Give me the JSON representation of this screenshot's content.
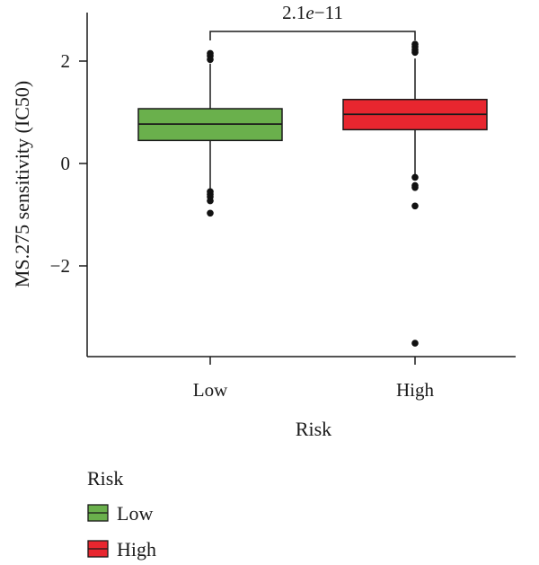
{
  "chart_data": {
    "type": "boxplot",
    "xlabel": "Risk",
    "ylabel": "MS.275 sensitivity (IC50)",
    "ylim": [
      -3.75,
      2.95
    ],
    "y_ticks": [
      2,
      0,
      -2
    ],
    "y_tick_labels": [
      "2",
      "0",
      "−2"
    ],
    "categories": [
      "Low",
      "High"
    ],
    "significance": {
      "label_prefix": "2.1",
      "label_e": "e",
      "label_suffix": "−11",
      "groups": [
        "Low",
        "High"
      ]
    },
    "series": [
      {
        "name": "Low",
        "color": "#6ab04c",
        "q1": 0.45,
        "median": 0.77,
        "q3": 1.07,
        "whisker_low": -0.5,
        "whisker_high": 1.95,
        "outliers": [
          2.15,
          2.1,
          2.03,
          -0.55,
          -0.6,
          -0.65,
          -0.73,
          -0.97
        ]
      },
      {
        "name": "High",
        "color": "#e8262f",
        "q1": 0.66,
        "median": 0.96,
        "q3": 1.25,
        "whisker_low": -0.22,
        "whisker_high": 2.05,
        "outliers": [
          2.33,
          2.28,
          2.22,
          2.17,
          -0.27,
          -0.43,
          -0.47,
          -0.83,
          -3.51
        ]
      }
    ],
    "legend": {
      "title": "Risk",
      "items": [
        {
          "label": "Low",
          "color": "#6ab04c"
        },
        {
          "label": "High",
          "color": "#e8262f"
        }
      ]
    }
  }
}
